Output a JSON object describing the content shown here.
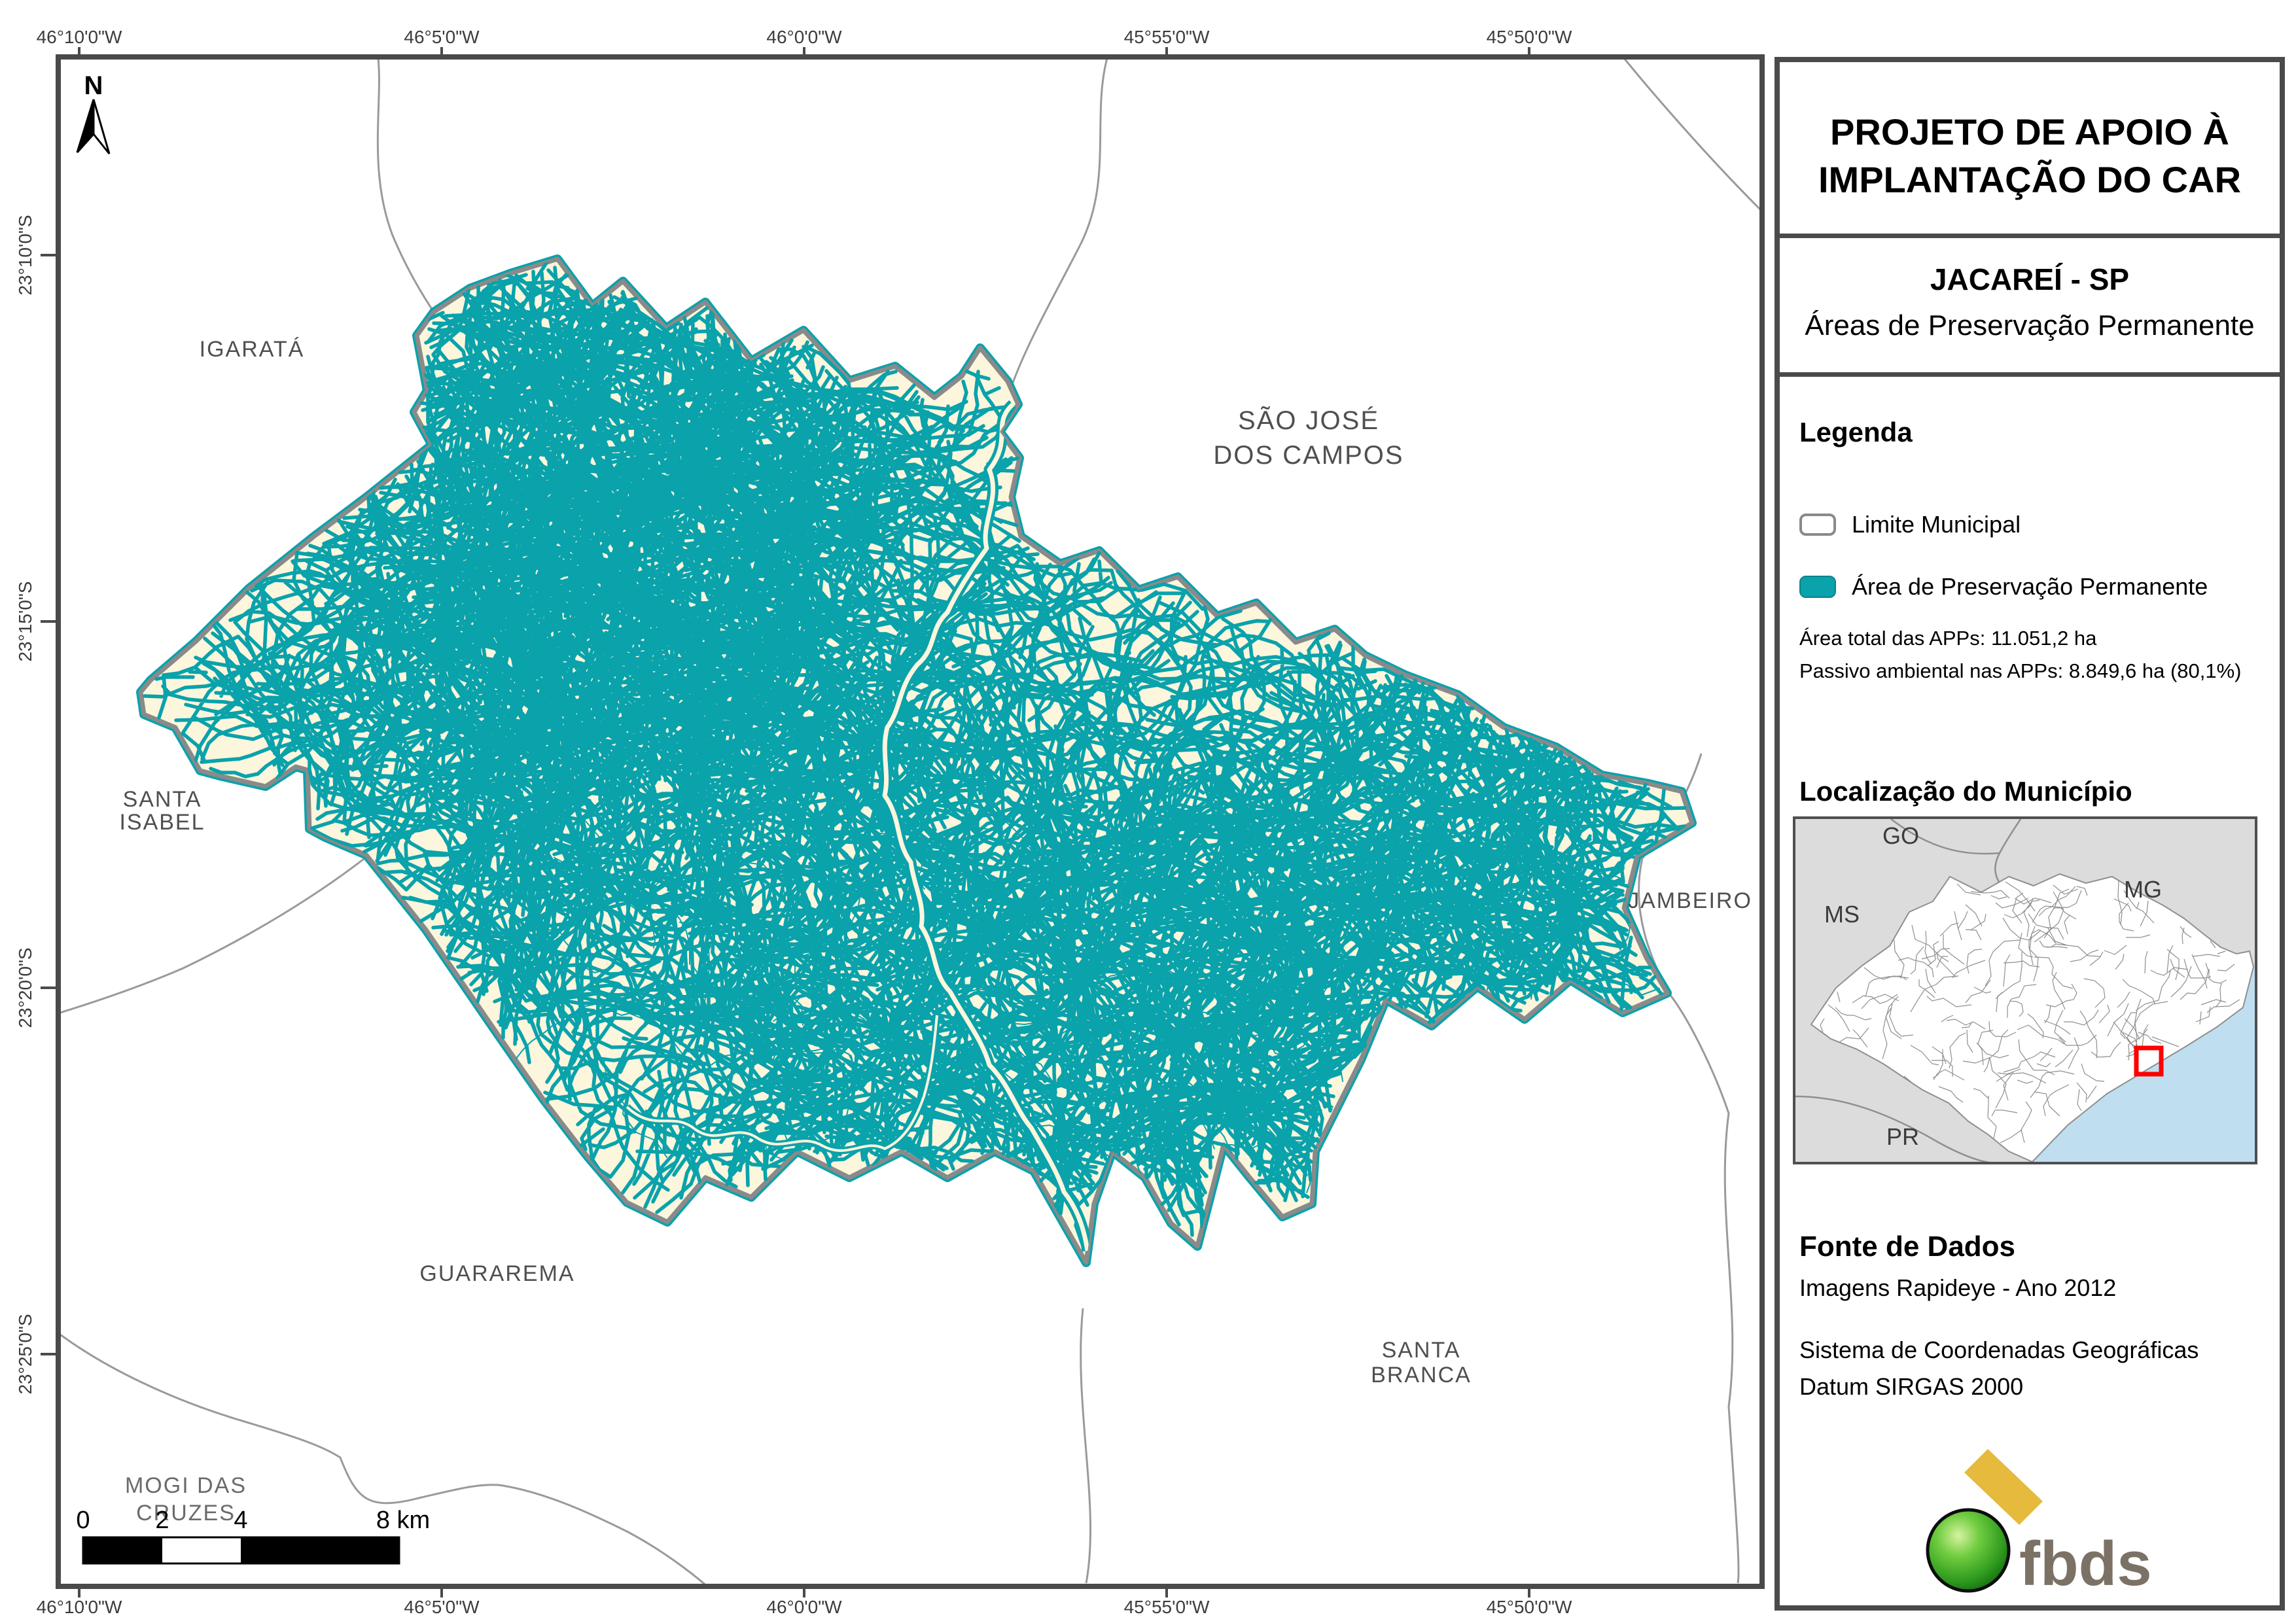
{
  "panel": {
    "title_line1": "PROJETO DE APOIO À",
    "title_line2": "IMPLANTAÇÃO DO CAR",
    "municipality_title": "JACAREÍ - SP",
    "subtitle": "Áreas de Preservação Permanente",
    "legend": {
      "heading": "Legenda",
      "items": [
        {
          "label": "Limite Municipal"
        },
        {
          "label": "Área de Preservação Permanente"
        }
      ],
      "stat1": "Área total das APPs: 11.051,2 ha",
      "stat2": "Passivo ambiental nas APPs: 8.849,6 ha (80,1%)"
    },
    "location": {
      "heading": "Localização do Município",
      "labels": {
        "go": "GO",
        "ms": "MS",
        "mg": "MG",
        "pr": "PR"
      }
    },
    "source": {
      "heading": "Fonte de Dados",
      "line1": "Imagens Rapideye - Ano 2012",
      "line2": "Sistema de Coordenadas Geográficas",
      "line3": "Datum SIRGAS 2000"
    },
    "logo_text": "fbds"
  },
  "map": {
    "north_label": "N",
    "lon_ticks": [
      "46°10'0\"W",
      "46°5'0\"W",
      "46°0'0\"W",
      "45°55'0\"W",
      "45°50'0\"W"
    ],
    "lat_ticks": [
      "23°10'0\"S",
      "23°15'0\"S",
      "23°20'0\"S",
      "23°25'0\"S"
    ],
    "places": {
      "igarata": "IGARATÁ",
      "sao_jose_1": "SÃO JOSÉ",
      "sao_jose_2": "DOS CAMPOS",
      "santa_isabel_1": "SANTA",
      "santa_isabel_2": "ISABEL",
      "jambeiro": "JAMBEIRO",
      "guararema": "GUARAREMA",
      "santa_branca_1": "SANTA",
      "santa_branca_2": "BRANCA",
      "mogi_1": "MOGI DAS",
      "mogi_2": "CRUZES"
    },
    "scale": {
      "t0": "0",
      "t2": "2",
      "t4": "4",
      "t8": "8 km"
    }
  },
  "colors": {
    "app_teal": "#0AA2AB",
    "municipality_fill": "#FCF6DD",
    "municipality_border": "#8A8A8A",
    "neighbor_line": "#9A9A9A",
    "frame": "#4A4A4A",
    "label_gray": "#4F4F4F",
    "inset_land": "#DCDCDC",
    "inset_line": "#8F8F8F",
    "ocean_blue": "#BFDFF1",
    "highlight_red": "#FF0000",
    "logo_green": "#3BA32C",
    "logo_yellow": "#E5BA3D",
    "logo_text_gray": "#7B7265"
  }
}
